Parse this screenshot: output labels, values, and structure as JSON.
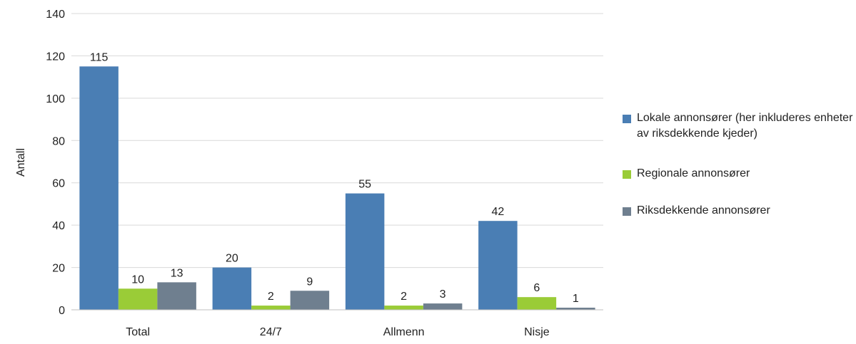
{
  "chart_data": {
    "type": "bar",
    "categories": [
      "Total",
      "24/7",
      "Allmenn",
      "Nisje"
    ],
    "series": [
      {
        "name": "Lokale annonsører (her inkluderes enheter av riksdekkende kjeder)",
        "values": [
          115,
          20,
          55,
          42
        ],
        "color": "#4a7eb4"
      },
      {
        "name": "Regionale annonsører",
        "values": [
          10,
          2,
          2,
          6
        ],
        "color": "#9acc37"
      },
      {
        "name": "Riksdekkende annonsører",
        "values": [
          13,
          9,
          3,
          1
        ],
        "color": "#6f7f8f"
      }
    ],
    "ylabel": "Antall",
    "xlabel": "",
    "ylim": [
      0,
      140
    ],
    "yticks": [
      0,
      20,
      40,
      60,
      80,
      100,
      120,
      140
    ],
    "grid": true,
    "legend_position": "right"
  }
}
